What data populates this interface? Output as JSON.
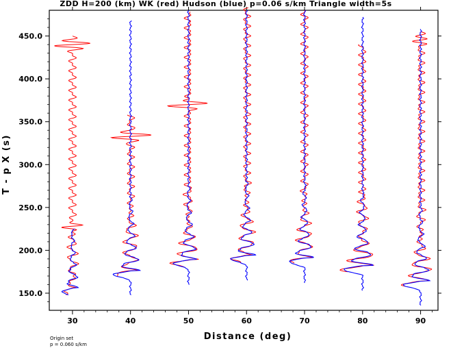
{
  "chart_data": {
    "type": "line",
    "title": "ZDD H=200 (km) WK (red) Hudson (blue) p=0.06 s/km Triangle width=5s",
    "xlabel": "Distance (deg)",
    "ylabel": "T - p X (s)",
    "xlim": [
      26,
      93
    ],
    "ylim": [
      130,
      480
    ],
    "x_ticks": [
      30,
      40,
      50,
      60,
      70,
      80,
      90
    ],
    "x_tick_labels": [
      "30",
      "40",
      "50",
      "60",
      "70",
      "80",
      "90"
    ],
    "y_ticks": [
      150,
      200,
      250,
      300,
      350,
      400,
      450
    ],
    "y_tick_labels": [
      "150.0",
      "200.0",
      "250.0",
      "300.0",
      "350.0",
      "400.0",
      "450.0"
    ],
    "series": [
      {
        "name": "WK",
        "color": "#ff0000"
      },
      {
        "name": "Hudson",
        "color": "#0000ff"
      }
    ],
    "traces": [
      {
        "distance": 30,
        "blue": {
          "t_start": 148,
          "t_end": 225,
          "arrival": 152,
          "swing": 2.0
        },
        "red": {
          "t_start": 148,
          "t_end": 450,
          "big_event": 440,
          "big_amp": 3.5,
          "second_event": 228,
          "second_amp": 1.5
        }
      },
      {
        "distance": 40,
        "blue": {
          "t_start": 148,
          "t_end": 468,
          "arrival": 172,
          "swing": 3.5
        },
        "red": {
          "t_start": 170,
          "t_end": 358,
          "big_event": 333,
          "big_amp": 4.5
        }
      },
      {
        "distance": 50,
        "blue": {
          "t_start": 160,
          "t_end": 480,
          "arrival": 185,
          "swing": 3.0
        },
        "red": {
          "t_start": 180,
          "t_end": 478,
          "big_event": 370,
          "big_amp": 3.2
        }
      },
      {
        "distance": 60,
        "blue": {
          "t_start": 165,
          "t_end": 480,
          "arrival": 190,
          "swing": 3.2
        },
        "red": {
          "t_start": 185,
          "t_end": 483,
          "big_event": 0,
          "big_amp": 0
        }
      },
      {
        "distance": 70,
        "blue": {
          "t_start": 162,
          "t_end": 480,
          "arrival": 187,
          "swing": 3.2
        },
        "red": {
          "t_start": 185,
          "t_end": 480,
          "big_event": 0,
          "big_amp": 0
        }
      },
      {
        "distance": 80,
        "blue": {
          "t_start": 153,
          "t_end": 472,
          "arrival": 178,
          "swing": 4.0
        },
        "red": {
          "t_start": 175,
          "t_end": 440,
          "big_event": 0,
          "big_amp": 0
        }
      },
      {
        "distance": 90,
        "blue": {
          "t_start": 136,
          "t_end": 458,
          "arrival": 160,
          "swing": 3.5
        },
        "red": {
          "t_start": 158,
          "t_end": 455,
          "big_event": 445,
          "big_amp": 1.5
        }
      }
    ],
    "grid": false
  },
  "footnote": {
    "line1": "Origin set",
    "line2": "p = 0.060 s/km"
  }
}
